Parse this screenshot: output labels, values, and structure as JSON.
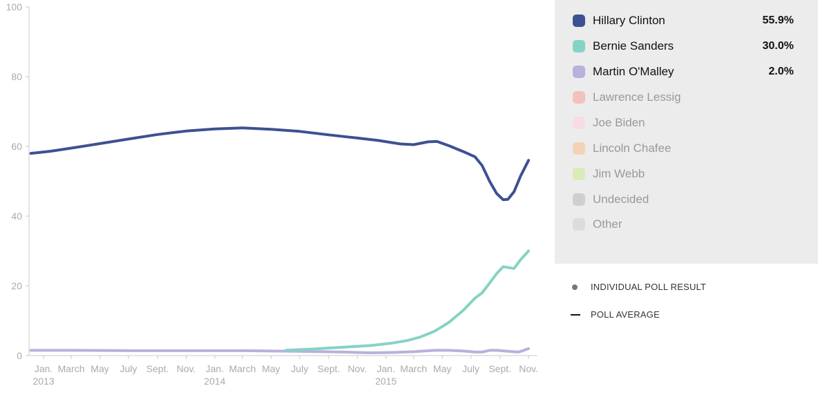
{
  "chart_data": {
    "type": "line",
    "ylim": [
      0,
      100
    ],
    "yticks": [
      0,
      20,
      40,
      60,
      80,
      100
    ],
    "xlim": [
      "2012-12-01",
      "2015-11-20"
    ],
    "xticks": [
      {
        "date": "2013-01-01",
        "label": "Jan.",
        "year": "2013"
      },
      {
        "date": "2013-03-01",
        "label": "March",
        "year": ""
      },
      {
        "date": "2013-05-01",
        "label": "May",
        "year": ""
      },
      {
        "date": "2013-07-01",
        "label": "July",
        "year": ""
      },
      {
        "date": "2013-09-01",
        "label": "Sept.",
        "year": ""
      },
      {
        "date": "2013-11-01",
        "label": "Nov.",
        "year": ""
      },
      {
        "date": "2014-01-01",
        "label": "Jan.",
        "year": "2014"
      },
      {
        "date": "2014-03-01",
        "label": "March",
        "year": ""
      },
      {
        "date": "2014-05-01",
        "label": "May",
        "year": ""
      },
      {
        "date": "2014-07-01",
        "label": "July",
        "year": ""
      },
      {
        "date": "2014-09-01",
        "label": "Sept.",
        "year": ""
      },
      {
        "date": "2014-11-01",
        "label": "Nov.",
        "year": ""
      },
      {
        "date": "2015-01-01",
        "label": "Jan.",
        "year": "2015"
      },
      {
        "date": "2015-03-01",
        "label": "March",
        "year": ""
      },
      {
        "date": "2015-05-01",
        "label": "May",
        "year": ""
      },
      {
        "date": "2015-07-01",
        "label": "July",
        "year": ""
      },
      {
        "date": "2015-09-01",
        "label": "Sept.",
        "year": ""
      },
      {
        "date": "2015-11-01",
        "label": "Nov.",
        "year": ""
      }
    ],
    "grid": false,
    "series": [
      {
        "name": "Hillary Clinton",
        "color": "#3d5192",
        "points": [
          [
            "2012-12-05",
            58.0
          ],
          [
            "2013-01-15",
            58.6
          ],
          [
            "2013-03-01",
            59.5
          ],
          [
            "2013-05-01",
            60.8
          ],
          [
            "2013-07-01",
            62.1
          ],
          [
            "2013-09-01",
            63.4
          ],
          [
            "2013-11-01",
            64.4
          ],
          [
            "2014-01-01",
            65.0
          ],
          [
            "2014-03-01",
            65.3
          ],
          [
            "2014-05-01",
            64.9
          ],
          [
            "2014-07-01",
            64.3
          ],
          [
            "2014-09-01",
            63.3
          ],
          [
            "2014-11-01",
            62.4
          ],
          [
            "2014-12-15",
            61.7
          ],
          [
            "2015-02-01",
            60.7
          ],
          [
            "2015-03-01",
            60.5
          ],
          [
            "2015-04-01",
            61.3
          ],
          [
            "2015-04-20",
            61.4
          ],
          [
            "2015-05-15",
            60.2
          ],
          [
            "2015-06-15",
            58.5
          ],
          [
            "2015-07-10",
            57.0
          ],
          [
            "2015-07-25",
            54.5
          ],
          [
            "2015-08-10",
            50.0
          ],
          [
            "2015-08-25",
            46.5
          ],
          [
            "2015-09-08",
            44.7
          ],
          [
            "2015-09-18",
            44.8
          ],
          [
            "2015-10-01",
            47.0
          ],
          [
            "2015-10-15",
            51.5
          ],
          [
            "2015-11-01",
            56.0
          ]
        ]
      },
      {
        "name": "Bernie Sanders",
        "color": "#85d3c4",
        "points": [
          [
            "2014-06-01",
            1.5
          ],
          [
            "2014-08-01",
            1.9
          ],
          [
            "2014-10-01",
            2.4
          ],
          [
            "2014-12-01",
            2.9
          ],
          [
            "2015-01-15",
            3.6
          ],
          [
            "2015-02-15",
            4.3
          ],
          [
            "2015-03-15",
            5.3
          ],
          [
            "2015-04-15",
            7.0
          ],
          [
            "2015-05-15",
            9.5
          ],
          [
            "2015-06-15",
            13.0
          ],
          [
            "2015-07-10",
            16.5
          ],
          [
            "2015-07-25",
            18.0
          ],
          [
            "2015-08-10",
            20.8
          ],
          [
            "2015-08-25",
            23.5
          ],
          [
            "2015-09-08",
            25.5
          ],
          [
            "2015-09-20",
            25.2
          ],
          [
            "2015-10-01",
            25.0
          ],
          [
            "2015-10-15",
            27.5
          ],
          [
            "2015-11-01",
            30.0
          ]
        ]
      },
      {
        "name": "Martin O'Malley",
        "color": "#b7b1dc",
        "points": [
          [
            "2012-12-05",
            1.5
          ],
          [
            "2013-03-01",
            1.5
          ],
          [
            "2013-07-01",
            1.4
          ],
          [
            "2013-11-01",
            1.4
          ],
          [
            "2014-03-01",
            1.4
          ],
          [
            "2014-07-01",
            1.2
          ],
          [
            "2014-10-01",
            1.0
          ],
          [
            "2014-12-01",
            0.8
          ],
          [
            "2015-01-15",
            0.9
          ],
          [
            "2015-03-01",
            1.1
          ],
          [
            "2015-04-15",
            1.5
          ],
          [
            "2015-05-15",
            1.5
          ],
          [
            "2015-06-15",
            1.3
          ],
          [
            "2015-07-10",
            1.0
          ],
          [
            "2015-07-25",
            1.0
          ],
          [
            "2015-08-10",
            1.5
          ],
          [
            "2015-08-25",
            1.5
          ],
          [
            "2015-09-20",
            1.2
          ],
          [
            "2015-10-10",
            1.0
          ],
          [
            "2015-10-20",
            1.4
          ],
          [
            "2015-11-01",
            2.0
          ]
        ]
      }
    ]
  },
  "legend": {
    "items": [
      {
        "name": "Hillary Clinton",
        "value": "55.9%",
        "color": "#3d5192",
        "active": true
      },
      {
        "name": "Bernie Sanders",
        "value": "30.0%",
        "color": "#85d3c4",
        "active": true
      },
      {
        "name": "Martin O'Malley",
        "value": "2.0%",
        "color": "#b7b1dc",
        "active": true
      },
      {
        "name": "Lawrence Lessig",
        "value": "",
        "color": "#f3c2bd",
        "active": false
      },
      {
        "name": "Joe Biden",
        "value": "",
        "color": "#f7dce8",
        "active": false
      },
      {
        "name": "Lincoln Chafee",
        "value": "",
        "color": "#f3d3b4",
        "active": false
      },
      {
        "name": "Jim Webb",
        "value": "",
        "color": "#d9ebb8",
        "active": false
      },
      {
        "name": "Undecided",
        "value": "",
        "color": "#cfcfcf",
        "active": false
      },
      {
        "name": "Other",
        "value": "",
        "color": "#dcdcdc",
        "active": false
      }
    ]
  },
  "key": {
    "individual_label": "INDIVIDUAL POLL RESULT",
    "average_label": "POLL AVERAGE"
  }
}
